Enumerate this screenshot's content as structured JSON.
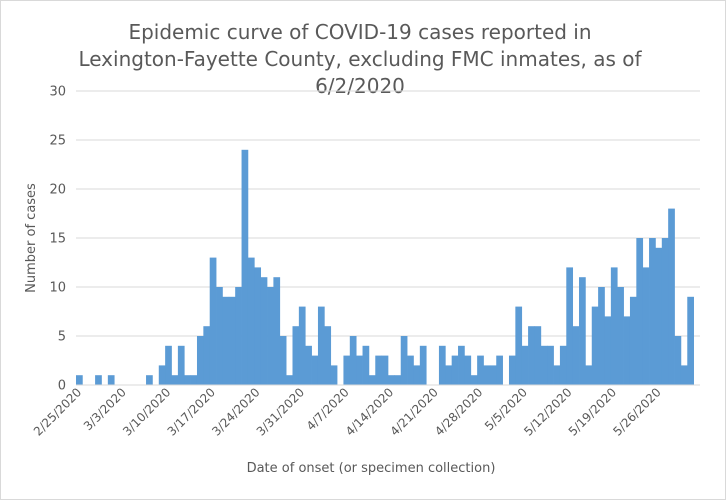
{
  "chart_data": {
    "type": "bar",
    "title": "Epidemic curve of COVID-19 cases reported in Lexington-Fayette County, excluding FMC inmates, as of 6/2/2020",
    "xlabel": "Date of onset (or specimen collection)",
    "ylabel": "Number of cases",
    "ylim": [
      0,
      30
    ],
    "yticks": [
      0,
      5,
      10,
      15,
      20,
      25,
      30
    ],
    "grid": true,
    "bar_color": "#5b9bd5",
    "x_tick_labels": [
      "2/25/2020",
      "3/3/2020",
      "3/10/2020",
      "3/17/2020",
      "3/24/2020",
      "3/31/2020",
      "4/7/2020",
      "4/14/2020",
      "4/21/2020",
      "4/28/2020",
      "5/5/2020",
      "5/12/2020",
      "5/19/2020",
      "5/26/2020"
    ],
    "categories": [
      "2/25/2020",
      "2/26/2020",
      "2/27/2020",
      "2/28/2020",
      "2/29/2020",
      "3/1/2020",
      "3/2/2020",
      "3/3/2020",
      "3/4/2020",
      "3/5/2020",
      "3/6/2020",
      "3/7/2020",
      "3/8/2020",
      "3/9/2020",
      "3/10/2020",
      "3/11/2020",
      "3/12/2020",
      "3/13/2020",
      "3/14/2020",
      "3/15/2020",
      "3/16/2020",
      "3/17/2020",
      "3/18/2020",
      "3/19/2020",
      "3/20/2020",
      "3/21/2020",
      "3/22/2020",
      "3/23/2020",
      "3/24/2020",
      "3/25/2020",
      "3/26/2020",
      "3/27/2020",
      "3/28/2020",
      "3/29/2020",
      "3/30/2020",
      "3/31/2020",
      "4/1/2020",
      "4/2/2020",
      "4/3/2020",
      "4/4/2020",
      "4/5/2020",
      "4/6/2020",
      "4/7/2020",
      "4/8/2020",
      "4/9/2020",
      "4/10/2020",
      "4/11/2020",
      "4/12/2020",
      "4/13/2020",
      "4/14/2020",
      "4/15/2020",
      "4/16/2020",
      "4/17/2020",
      "4/18/2020",
      "4/19/2020",
      "4/20/2020",
      "4/21/2020",
      "4/22/2020",
      "4/23/2020",
      "4/24/2020",
      "4/25/2020",
      "4/26/2020",
      "4/27/2020",
      "4/28/2020",
      "4/29/2020",
      "4/30/2020",
      "5/1/2020",
      "5/2/2020",
      "5/3/2020",
      "5/4/2020",
      "5/5/2020",
      "5/6/2020",
      "5/7/2020",
      "5/8/2020",
      "5/9/2020",
      "5/10/2020",
      "5/11/2020",
      "5/12/2020",
      "5/13/2020",
      "5/14/2020",
      "5/15/2020",
      "5/16/2020",
      "5/17/2020",
      "5/18/2020",
      "5/19/2020",
      "5/20/2020",
      "5/21/2020",
      "5/22/2020",
      "5/23/2020",
      "5/24/2020",
      "5/25/2020",
      "5/26/2020",
      "5/27/2020",
      "5/28/2020",
      "5/29/2020",
      "5/30/2020",
      "5/31/2020",
      "6/1/2020"
    ],
    "values": [
      1,
      0,
      0,
      1,
      0,
      1,
      0,
      0,
      0,
      0,
      0,
      1,
      0,
      2,
      4,
      1,
      4,
      1,
      1,
      5,
      6,
      13,
      10,
      9,
      9,
      10,
      24,
      13,
      12,
      11,
      10,
      11,
      5,
      1,
      6,
      8,
      4,
      3,
      8,
      6,
      2,
      0,
      3,
      5,
      3,
      4,
      1,
      3,
      3,
      1,
      1,
      5,
      3,
      2,
      4,
      0,
      0,
      4,
      2,
      3,
      4,
      3,
      1,
      3,
      2,
      2,
      3,
      0,
      3,
      8,
      4,
      6,
      6,
      4,
      4,
      2,
      4,
      12,
      6,
      11,
      2,
      8,
      10,
      7,
      12,
      10,
      7,
      9,
      15,
      12,
      15,
      14,
      15,
      18,
      5,
      2,
      9,
      0
    ]
  }
}
